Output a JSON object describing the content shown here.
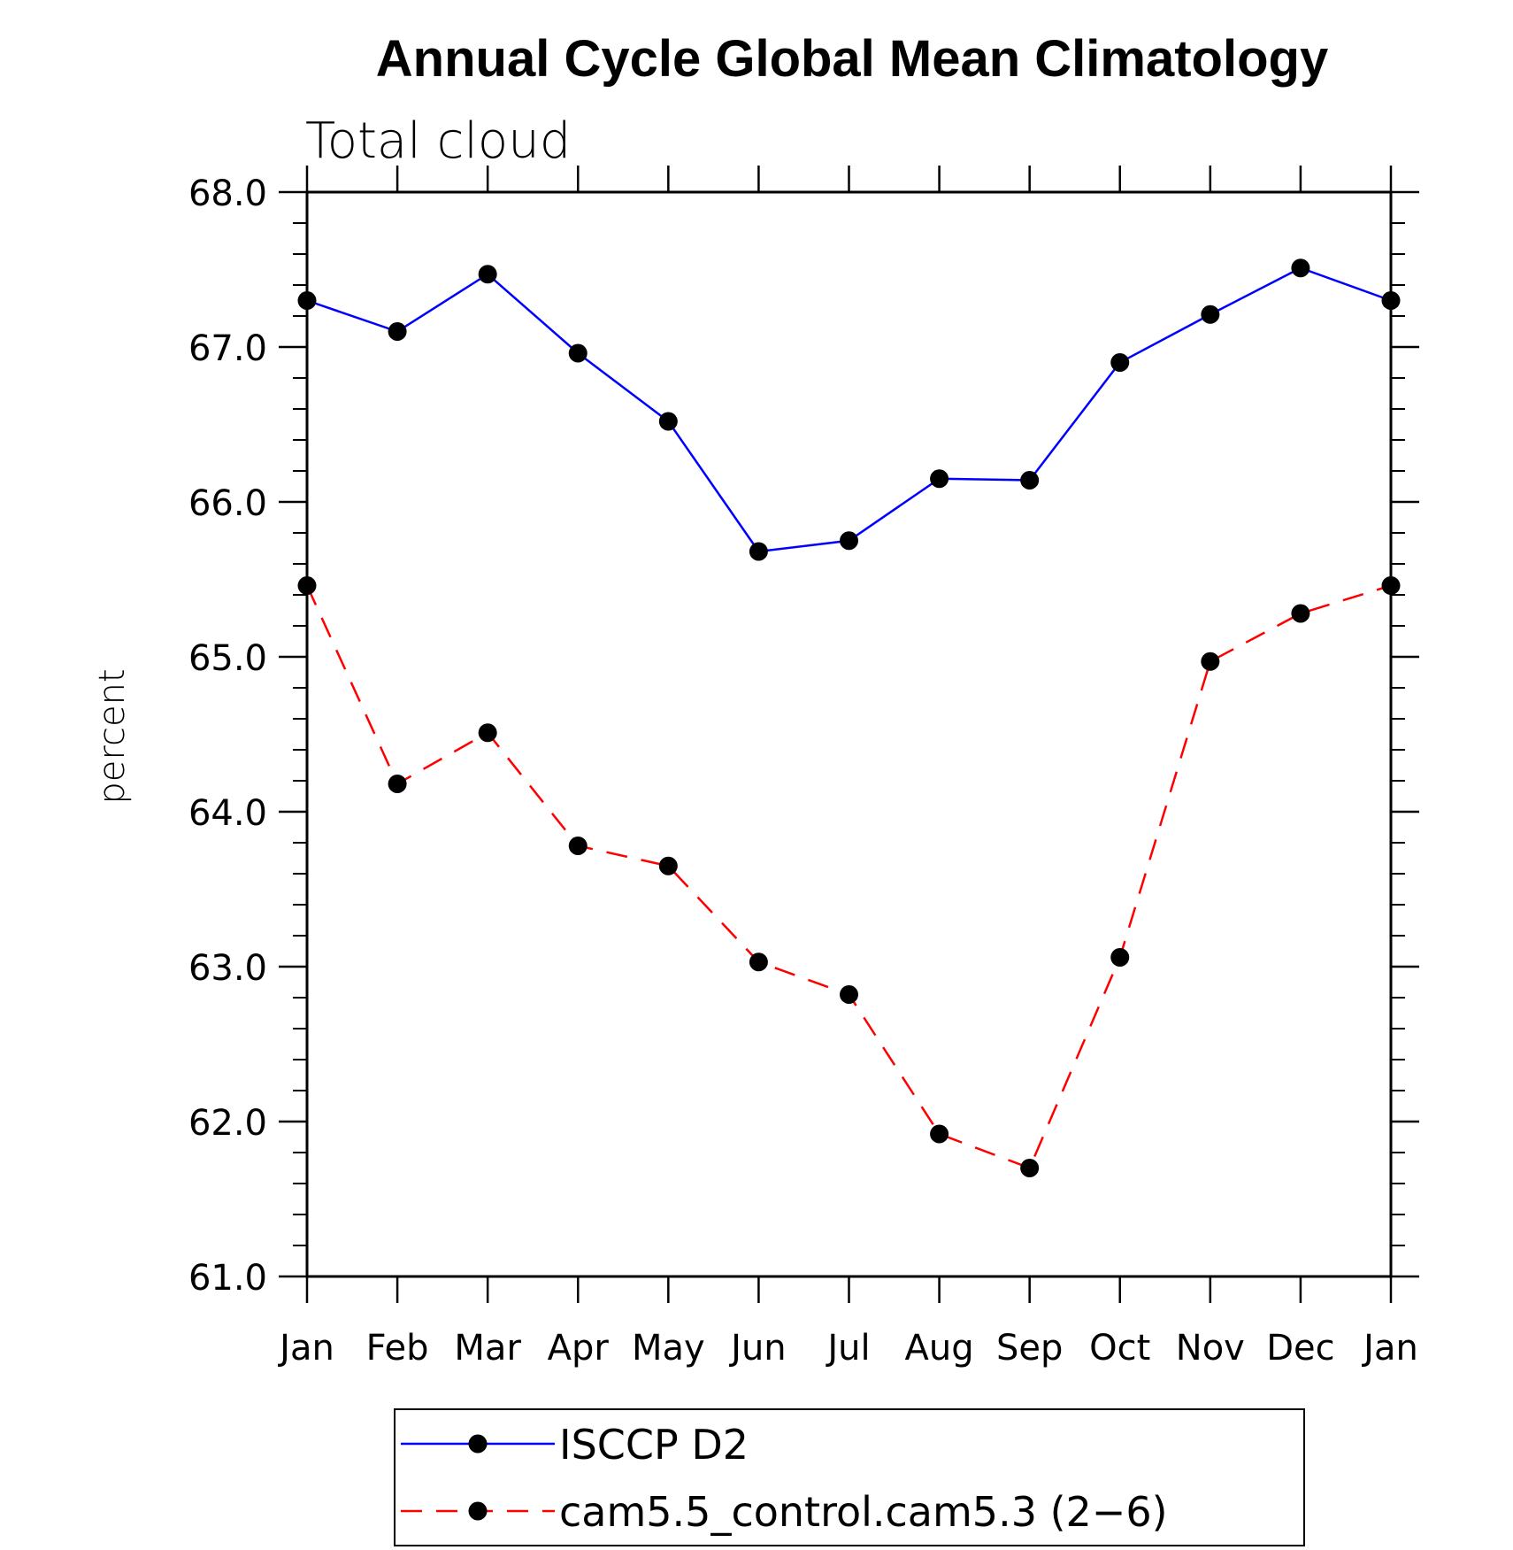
{
  "chart_data": {
    "type": "line",
    "title": "Annual Cycle Global Mean Climatology",
    "subtitle": "Total cloud",
    "xlabel": "",
    "ylabel": "percent",
    "categories": [
      "Jan",
      "Feb",
      "Mar",
      "Apr",
      "May",
      "Jun",
      "Jul",
      "Aug",
      "Sep",
      "Oct",
      "Nov",
      "Dec",
      "Jan"
    ],
    "ylim": [
      61.0,
      68.0
    ],
    "yticks": [
      "61.0",
      "62.0",
      "63.0",
      "64.0",
      "65.0",
      "66.0",
      "67.0",
      "68.0"
    ],
    "grid": false,
    "legend_position": "bottom",
    "series": [
      {
        "name": "ISCCP D2",
        "color": "#0000ff",
        "dash": "solid",
        "values": [
          67.3,
          67.1,
          67.47,
          66.96,
          66.52,
          65.68,
          65.75,
          66.15,
          66.14,
          66.9,
          67.21,
          67.51,
          67.3
        ]
      },
      {
        "name": "cam5.5_control.cam5.3 (2−6)",
        "color": "#ff0000",
        "dash": "dashed",
        "values": [
          65.46,
          64.18,
          64.51,
          63.78,
          63.65,
          63.03,
          62.82,
          61.92,
          61.7,
          63.06,
          64.97,
          65.28,
          65.46
        ]
      }
    ]
  }
}
